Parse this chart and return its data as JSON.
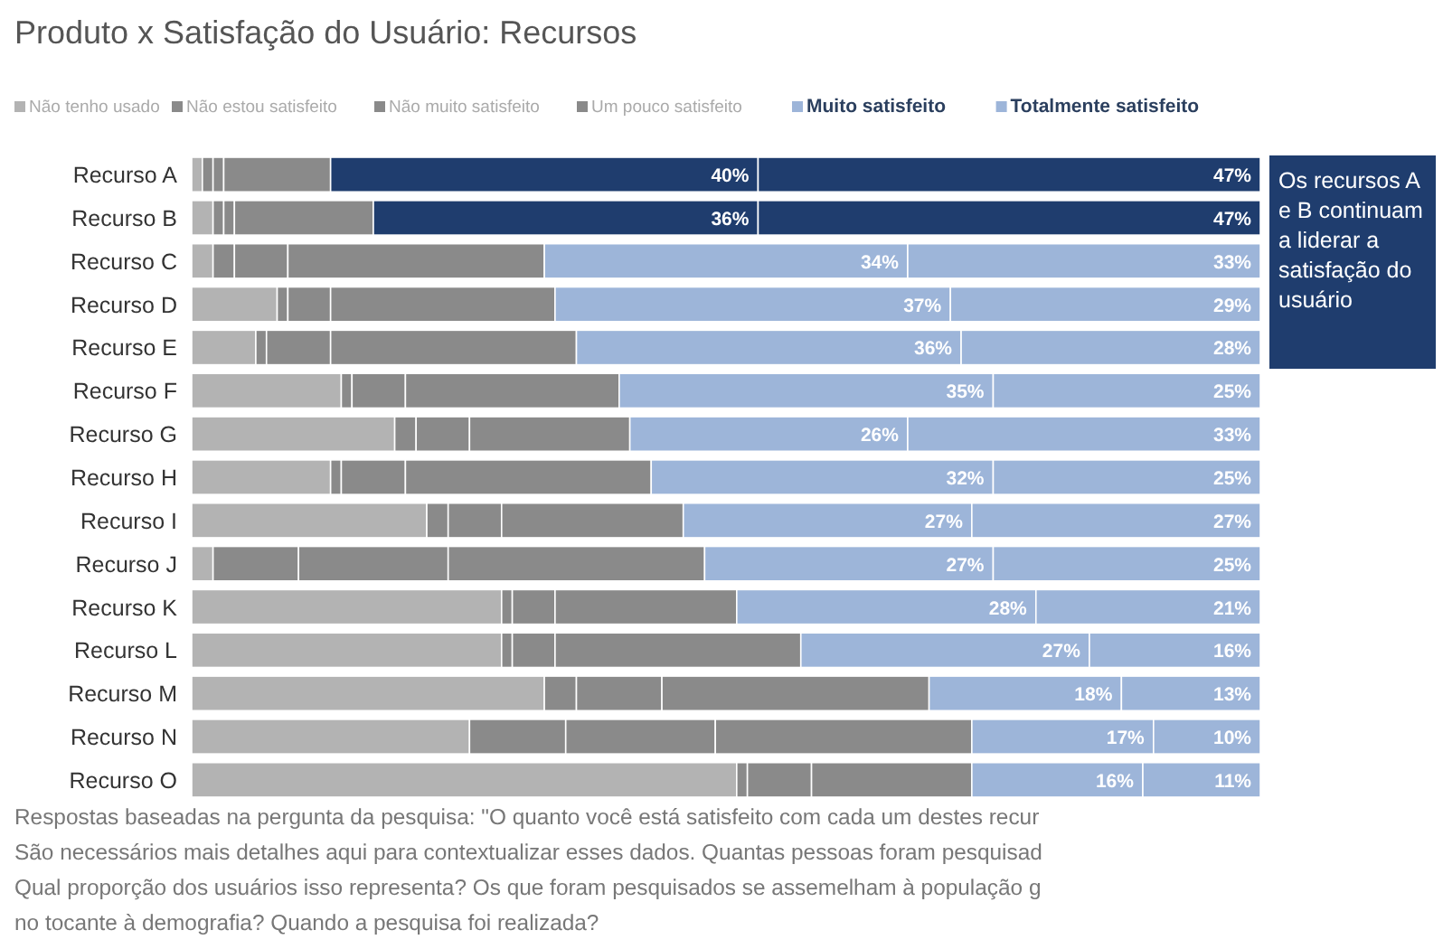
{
  "chart_data": {
    "type": "bar",
    "orientation": "horizontal",
    "stacked": true,
    "title": "Produto x Satisfação do Usuário: Recursos",
    "categories": [
      "Recurso A",
      "Recurso B",
      "Recurso C",
      "Recurso D",
      "Recurso E",
      "Recurso F",
      "Recurso G",
      "Recurso H",
      "Recurso I",
      "Recurso J",
      "Recurso K",
      "Recurso L",
      "Recurso M",
      "Recurso N",
      "Recurso O"
    ],
    "xlim": [
      0,
      100
    ],
    "tick_labels": "y",
    "legend": "top",
    "series": [
      {
        "name": "Não tenho usado",
        "color": "#b3b3b3",
        "values": [
          1,
          2,
          2,
          8,
          6,
          14,
          19,
          13,
          22,
          2,
          29,
          29,
          33,
          26,
          51
        ]
      },
      {
        "name": "Não estou satisfeito",
        "color": "#8a8a8a",
        "values": [
          1,
          1,
          2,
          1,
          1,
          1,
          2,
          1,
          2,
          8,
          1,
          1,
          3,
          9,
          1
        ]
      },
      {
        "name": "Não muito satisfeito",
        "color": "#8a8a8a",
        "values": [
          1,
          1,
          5,
          4,
          6,
          5,
          5,
          6,
          5,
          14,
          4,
          4,
          8,
          14,
          6
        ]
      },
      {
        "name": "Um pouco satisfeito",
        "color": "#8a8a8a",
        "values": [
          10,
          13,
          24,
          21,
          23,
          20,
          15,
          23,
          17,
          24,
          17,
          23,
          25,
          24,
          15
        ]
      },
      {
        "name": "Muito satisfeito",
        "color": "#9db5d9",
        "colors": [
          "#1f3d6e",
          "#1f3d6e",
          "#9db5d9",
          "#9db5d9",
          "#9db5d9",
          "#9db5d9",
          "#9db5d9",
          "#9db5d9",
          "#9db5d9",
          "#9db5d9",
          "#9db5d9",
          "#9db5d9",
          "#9db5d9",
          "#9db5d9",
          "#9db5d9"
        ],
        "values": [
          40,
          36,
          34,
          37,
          36,
          35,
          26,
          32,
          27,
          27,
          28,
          27,
          18,
          17,
          16
        ],
        "value_labels": [
          "40%",
          "36%",
          "34%",
          "37%",
          "36%",
          "35%",
          "26%",
          "32%",
          "27%",
          "27%",
          "28%",
          "27%",
          "18%",
          "17%",
          "16%"
        ]
      },
      {
        "name": "Totalmente satisfeito",
        "color": "#9db5d9",
        "colors": [
          "#1f3d6e",
          "#1f3d6e",
          "#9db5d9",
          "#9db5d9",
          "#9db5d9",
          "#9db5d9",
          "#9db5d9",
          "#9db5d9",
          "#9db5d9",
          "#9db5d9",
          "#9db5d9",
          "#9db5d9",
          "#9db5d9",
          "#9db5d9",
          "#9db5d9"
        ],
        "values": [
          47,
          47,
          33,
          29,
          28,
          25,
          33,
          25,
          27,
          25,
          21,
          16,
          13,
          10,
          11
        ],
        "value_labels": [
          "47%",
          "47%",
          "33%",
          "29%",
          "28%",
          "25%",
          "33%",
          "25%",
          "27%",
          "25%",
          "21%",
          "16%",
          "13%",
          "10%",
          "11%"
        ]
      }
    ],
    "annotations": [
      "Os recursos A e B continuam a liderar a satisfação do usuário",
      "Respostas baseadas na pergunta da pesquisa: \"O quanto você está satisfeito com cada um destes recur",
      "São necessários mais detalhes aqui para contextualizar esses dados. Quantas pessoas foram pesquisad",
      "Qual proporção dos usuários isso representa? Os que foram pesquisados se assemelham à população g",
      "no tocante à demografia? Quando a pesquisa foi realizada?"
    ]
  }
}
